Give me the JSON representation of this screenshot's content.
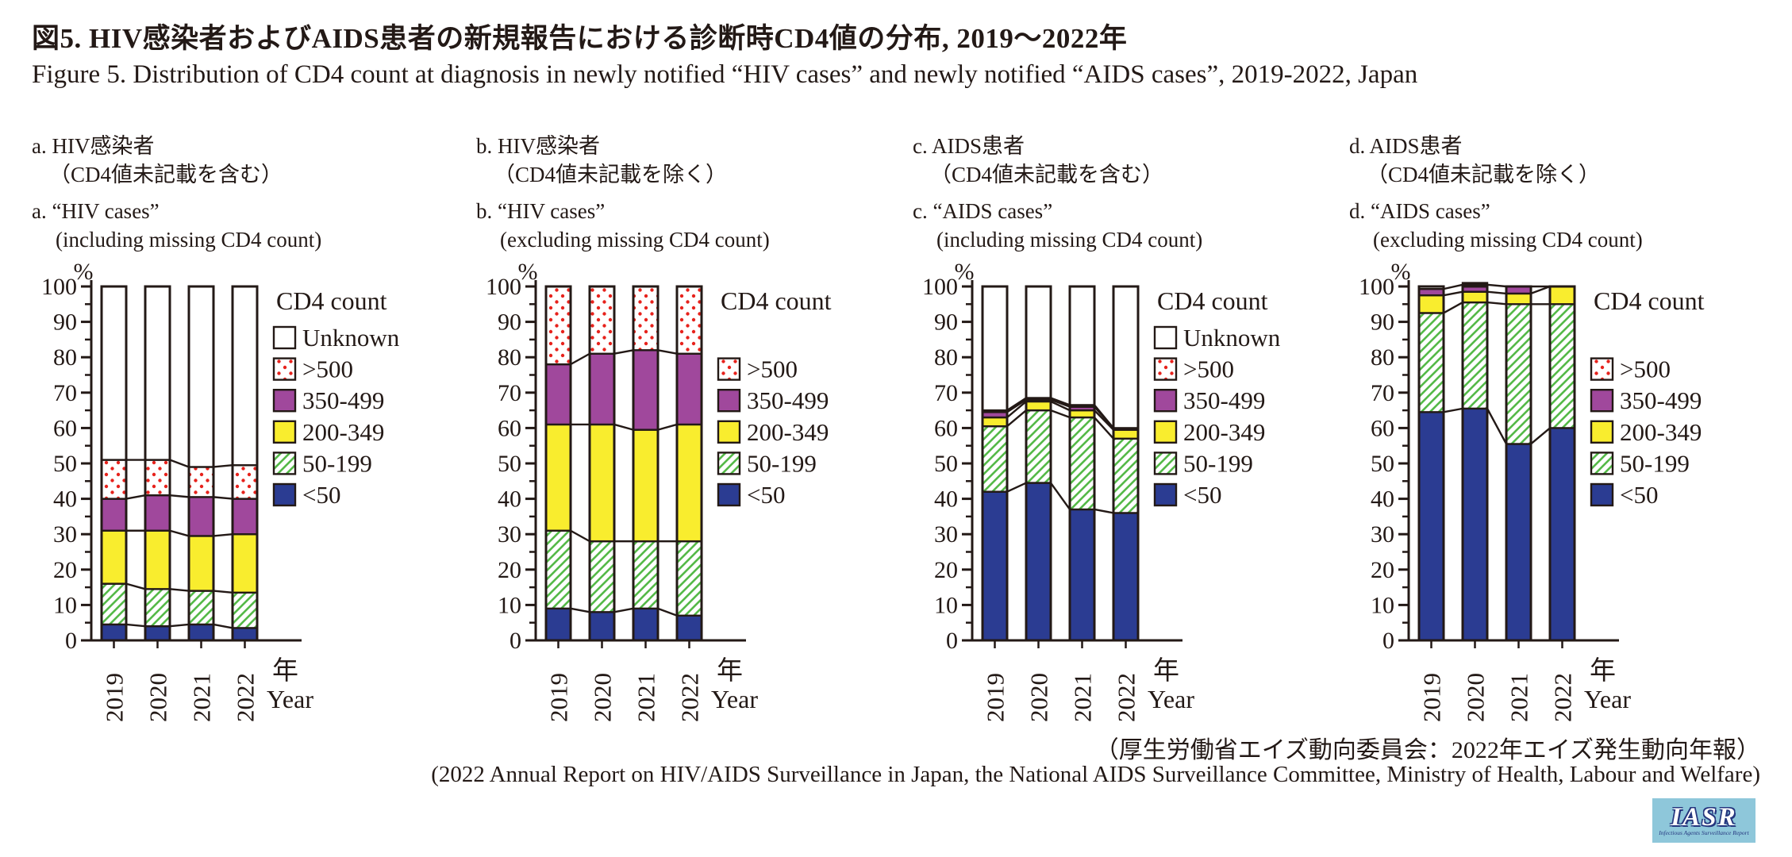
{
  "title": {
    "ja": "図5. HIV感染者およびAIDS患者の新規報告における診断時CD4値の分布, 2019～2022年",
    "en": "Figure 5. Distribution of CD4 count at diagnosis in newly notified “HIV cases” and newly notified “AIDS cases”, 2019-2022, Japan"
  },
  "source": {
    "ja": "（厚生労働省エイズ動向委員会：2022年エイズ発生動向年報）",
    "en": "(2022 Annual Report on HIV/AIDS Surveillance in Japan, the National AIDS Surveillance Committee, Ministry of Health, Labour and Welfare)"
  },
  "logo": {
    "title": "IASR",
    "subtitle": "Infectious Agents Surveillance Report",
    "bg_color": "#8ec7da",
    "text_color": "#ffffff",
    "outline_color": "#25367e"
  },
  "styles": {
    "ink": "#231916",
    "<50": {
      "type": "solid",
      "fill": "#2b3c92"
    },
    "50-199": {
      "type": "hatch",
      "color": "#55b948"
    },
    "200-349": {
      "type": "solid",
      "fill": "#f9ed2e"
    },
    "350-499": {
      "type": "solid",
      "fill": "#a0489c"
    },
    ">500": {
      "type": "dots",
      "color": "#e7221c"
    },
    "Unknown": {
      "type": "solid",
      "fill": "#ffffff"
    }
  },
  "chart_data": [
    {
      "id": "a",
      "type": "bar",
      "header_ja1": "a. HIV感染者",
      "header_ja2": "（CD4値未記載を含む）",
      "header_en1": "a. “HIV cases”",
      "header_en2": "(including missing CD4 count)",
      "legend_title": "CD4 count",
      "y_unit": "%",
      "x_label_ja": "年",
      "x_label_en": "Year",
      "ylim": [
        0,
        100
      ],
      "y_tick_step": 10,
      "categories": [
        "2019",
        "2020",
        "2021",
        "2022"
      ],
      "series": [
        {
          "name": "<50",
          "values": [
            4.5,
            4,
            4.5,
            3.5
          ]
        },
        {
          "name": "50-199",
          "values": [
            11.5,
            10.5,
            9.5,
            10
          ]
        },
        {
          "name": "200-349",
          "values": [
            15,
            16.5,
            15.5,
            16.5
          ]
        },
        {
          "name": "350-499",
          "values": [
            9,
            10,
            11,
            10
          ]
        },
        {
          "name": ">500",
          "values": [
            11,
            10,
            8.5,
            9.5
          ]
        },
        {
          "name": "Unknown",
          "values": [
            49,
            49,
            51,
            50.5
          ]
        }
      ]
    },
    {
      "id": "b",
      "type": "bar",
      "header_ja1": "b. HIV感染者",
      "header_ja2": "（CD4値未記載を除く）",
      "header_en1": "b. “HIV cases”",
      "header_en2": "(excluding missing CD4 count)",
      "legend_title": "CD4 count",
      "y_unit": "%",
      "x_label_ja": "年",
      "x_label_en": "Year",
      "ylim": [
        0,
        100
      ],
      "y_tick_step": 10,
      "categories": [
        "2019",
        "2020",
        "2021",
        "2022"
      ],
      "series": [
        {
          "name": "<50",
          "values": [
            9,
            8,
            9,
            7
          ]
        },
        {
          "name": "50-199",
          "values": [
            22,
            20,
            19,
            21
          ]
        },
        {
          "name": "200-349",
          "values": [
            30,
            33,
            31.5,
            33
          ]
        },
        {
          "name": "350-499",
          "values": [
            17,
            20,
            22.5,
            20
          ]
        },
        {
          "name": ">500",
          "values": [
            22,
            19,
            18,
            19
          ]
        }
      ]
    },
    {
      "id": "c",
      "type": "bar",
      "header_ja1": "c. AIDS患者",
      "header_ja2": "（CD4値未記載を含む）",
      "header_en1": "c. “AIDS cases”",
      "header_en2": "(including missing CD4 count)",
      "legend_title": "CD4 count",
      "y_unit": "%",
      "x_label_ja": "年",
      "x_label_en": "Year",
      "ylim": [
        0,
        100
      ],
      "y_tick_step": 10,
      "categories": [
        "2019",
        "2020",
        "2021",
        "2022"
      ],
      "series": [
        {
          "name": "<50",
          "values": [
            42,
            44.5,
            37,
            36
          ]
        },
        {
          "name": "50-199",
          "values": [
            18.5,
            20.5,
            26,
            21
          ]
        },
        {
          "name": "200-349",
          "values": [
            2.5,
            2.5,
            2,
            2.5
          ]
        },
        {
          "name": "350-499",
          "values": [
            1.5,
            0.5,
            1,
            0.5
          ]
        },
        {
          "name": ">500",
          "values": [
            0.5,
            0.5,
            0.5,
            0
          ]
        },
        {
          "name": "Unknown",
          "values": [
            35,
            31.5,
            33.5,
            40
          ]
        }
      ]
    },
    {
      "id": "d",
      "type": "bar",
      "header_ja1": "d. AIDS患者",
      "header_ja2": "（CD4値未記載を除く）",
      "header_en1": "d. “AIDS cases”",
      "header_en2": "(excluding missing CD4 count)",
      "legend_title": "CD4 count",
      "y_unit": "%",
      "x_label_ja": "年",
      "x_label_en": "Year",
      "ylim": [
        0,
        100
      ],
      "y_tick_step": 10,
      "categories": [
        "2019",
        "2020",
        "2021",
        "2022"
      ],
      "series": [
        {
          "name": "<50",
          "values": [
            64.5,
            65.5,
            55.5,
            60
          ]
        },
        {
          "name": "50-199",
          "values": [
            28,
            30,
            39.5,
            35
          ]
        },
        {
          "name": "200-349",
          "values": [
            5,
            3,
            3,
            5
          ]
        },
        {
          "name": "350-499",
          "values": [
            1.8,
            2,
            2,
            0
          ]
        },
        {
          "name": ">500",
          "values": [
            0.7,
            0.5,
            0,
            0
          ]
        }
      ]
    }
  ]
}
